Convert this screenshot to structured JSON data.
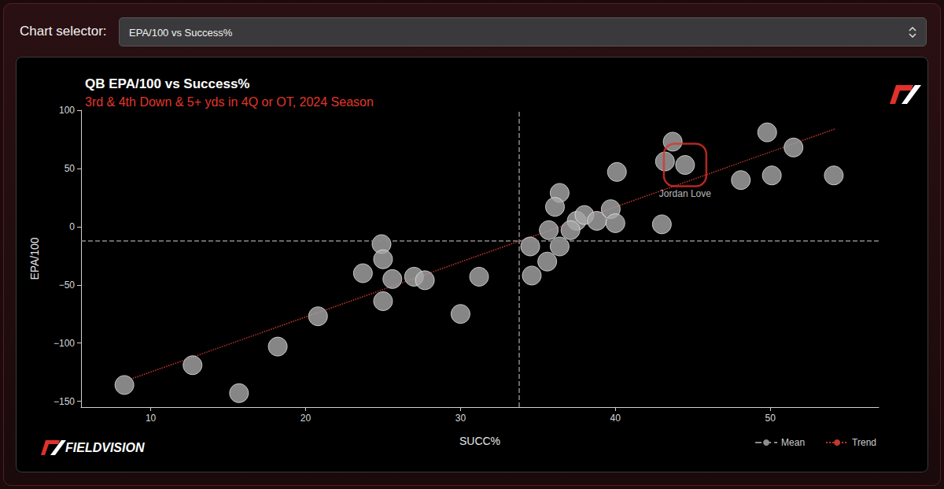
{
  "page": {
    "selector_label": "Chart selector:",
    "selector_value": "EPA/100 vs Success%",
    "brand": "FIELDVISION"
  },
  "chart_data": {
    "type": "scatter",
    "title": "QB EPA/100 vs Success%",
    "subtitle": "3rd & 4th Down & 5+ yds in 4Q or OT, 2024 Season",
    "x_label": "SUCC%",
    "y_label": "EPA/100",
    "x": [
      8.3,
      12.7,
      15.7,
      18.2,
      20.8,
      24.9,
      25.0,
      23.7,
      25.6,
      27.0,
      27.7,
      25.0,
      30.0,
      31.2,
      34.6,
      34.5,
      36.4,
      36.4,
      36.1,
      37.5,
      38.0,
      38.8,
      39.7,
      40.0,
      35.7,
      37.1,
      35.6,
      43.0,
      40.1,
      43.7,
      43.2,
      44.5,
      48.1,
      50.1,
      49.8,
      51.5,
      54.1
    ],
    "values": [
      -136,
      -119,
      -143,
      -103,
      -77,
      -15,
      -28,
      -40,
      -45,
      -43,
      -46,
      -64,
      -75,
      -43,
      -42,
      -17,
      -17,
      29,
      17,
      5,
      10,
      5,
      15,
      3,
      -3,
      -3,
      -30,
      2,
      47,
      73,
      56,
      53,
      40,
      44,
      81,
      68,
      44
    ],
    "color": "#a8a8a8",
    "marker": "circle",
    "xlim": [
      5.5,
      57
    ],
    "xticks": [
      10,
      20,
      30,
      40,
      50
    ],
    "ylim": [
      -155,
      100
    ],
    "yticks": [
      {
        "value": -150,
        "label": "−150"
      },
      {
        "value": -100,
        "label": "−100"
      },
      {
        "value": -50,
        "label": "−50"
      },
      0,
      50,
      100
    ],
    "grid": false,
    "legend": "bottom right",
    "series": [
      {
        "name": "Mean",
        "type": "mean",
        "color": "#8c8c8c",
        "line_style": "dashed",
        "x": 33.77,
        "y": -12.1
      },
      {
        "name": "Trend",
        "type": "line",
        "color": "#c0392b",
        "line_style": "dotted",
        "x": [
          8.7,
          54.2
        ],
        "values": [
          -131,
          84
        ]
      }
    ],
    "annotations": [
      {
        "text": "Jordan Love",
        "x": 44.5,
        "y": 53,
        "color": "#e0312b"
      }
    ]
  }
}
